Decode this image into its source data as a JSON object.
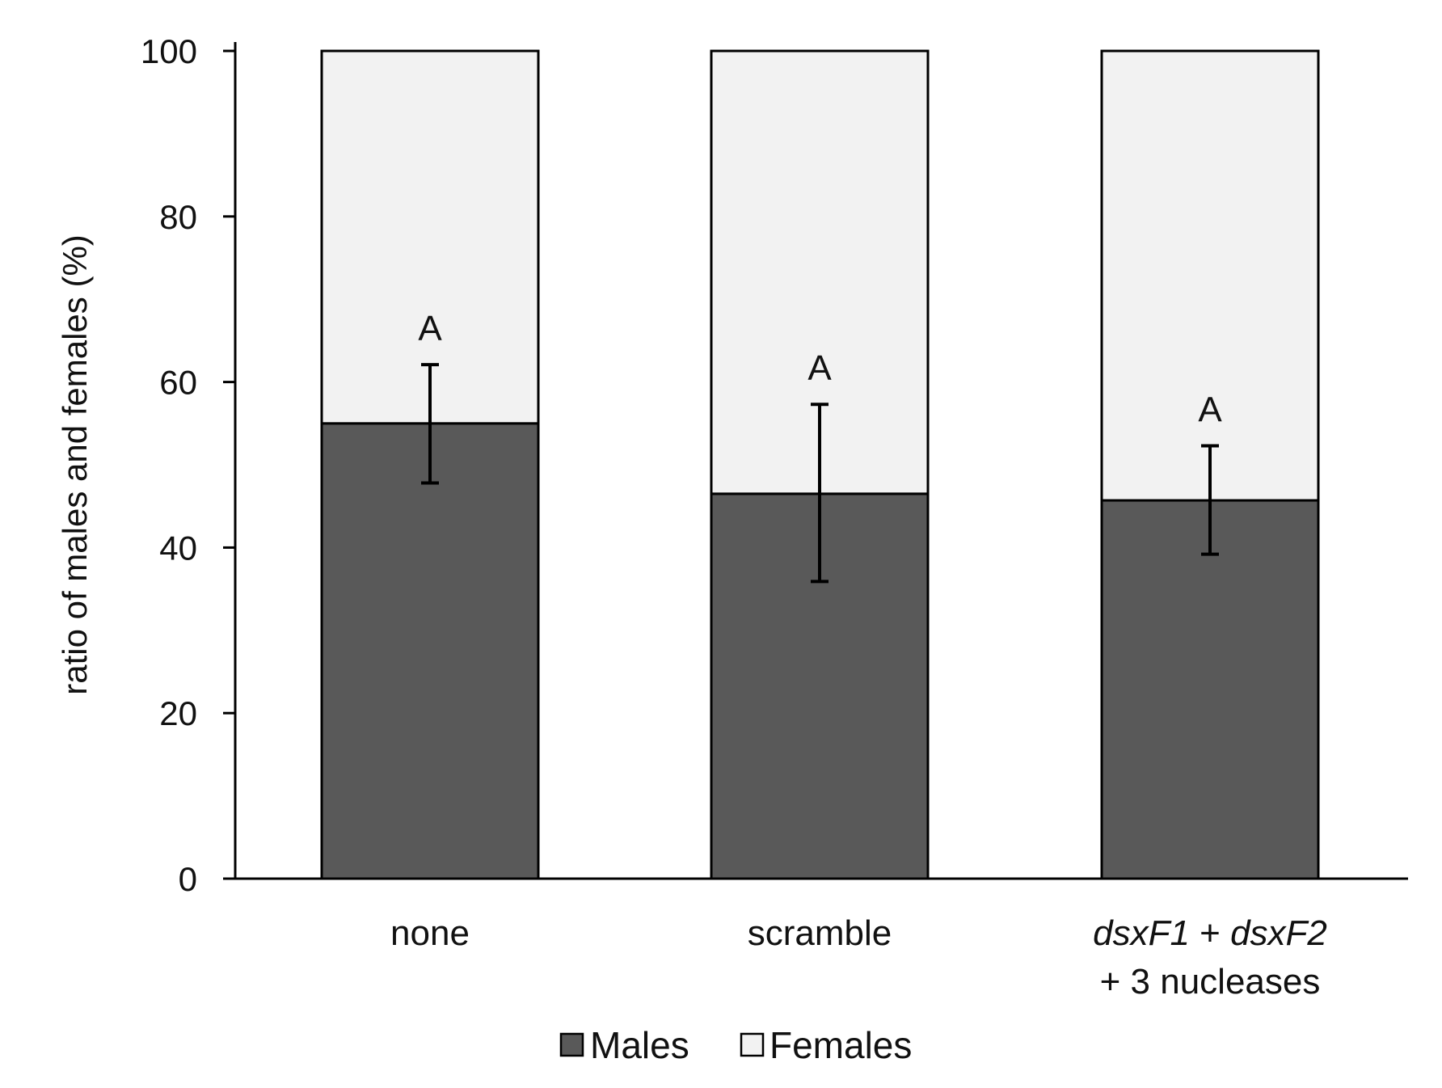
{
  "chart_data": {
    "type": "bar",
    "stacked": true,
    "title": "",
    "xlabel": "",
    "ylabel": "ratio of males and females (%)",
    "ylim": [
      0,
      100
    ],
    "yticks": [
      0,
      20,
      40,
      60,
      80,
      100
    ],
    "categories": [
      {
        "lines": [
          {
            "parts": [
              {
                "text": "none",
                "italic": false
              }
            ]
          }
        ]
      },
      {
        "lines": [
          {
            "parts": [
              {
                "text": "scramble",
                "italic": false
              }
            ]
          }
        ]
      },
      {
        "lines": [
          {
            "parts": [
              {
                "text": "dsxF1",
                "italic": true
              },
              {
                "text": " + ",
                "italic": false
              },
              {
                "text": "dsxF2",
                "italic": true
              }
            ]
          },
          {
            "parts": [
              {
                "text": "+ 3 nucleases",
                "italic": false
              }
            ]
          }
        ]
      }
    ],
    "series": [
      {
        "name": "Males",
        "color": "#595959",
        "values": [
          55,
          46.5,
          45.7
        ]
      },
      {
        "name": "Females",
        "color": "#f2f2f2",
        "values": [
          45,
          53.5,
          54.3
        ]
      }
    ],
    "error_bars": [
      {
        "series": "Males",
        "low": 47.8,
        "high": 62.1
      },
      {
        "series": "Males",
        "low": 35.9,
        "high": 57.3
      },
      {
        "series": "Males",
        "low": 39.2,
        "high": 52.3
      }
    ],
    "significance_letters": [
      "A",
      "A",
      "A"
    ],
    "legend": {
      "position": "bottom",
      "items": [
        "Males",
        "Females"
      ]
    },
    "grid": false
  }
}
